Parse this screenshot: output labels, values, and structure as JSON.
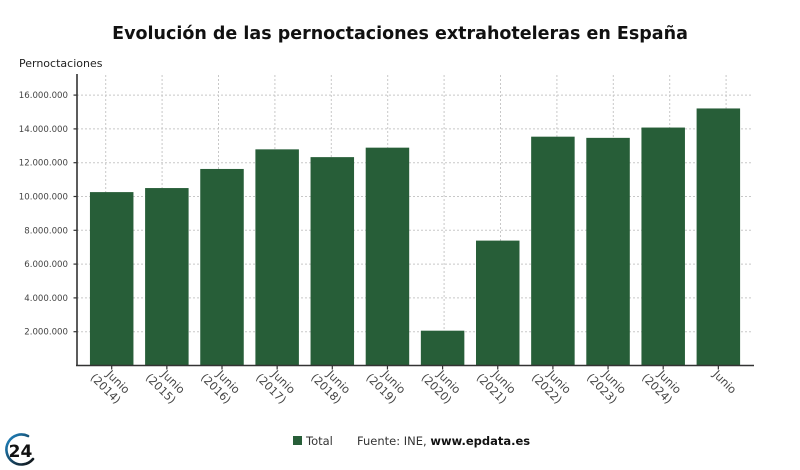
{
  "colors": {
    "bar": "#275e38",
    "logo_arc_start": "#1e88c8",
    "logo_arc_end": "#111111"
  },
  "logo": {
    "text": "24",
    "icon": "epdata-24-logo-icon"
  },
  "legend": {
    "series_label": "Total",
    "source_prefix": "Fuente: INE, ",
    "source_link": "www.epdata.es"
  },
  "chart_data": {
    "type": "bar",
    "title": "Evolución de las pernoctaciones extrahoteleras en España",
    "xlabel": "",
    "ylabel": "Pernoctaciones",
    "ylim": [
      0,
      17000000
    ],
    "yticks": [
      2000000,
      4000000,
      6000000,
      8000000,
      10000000,
      12000000,
      14000000,
      16000000
    ],
    "ytick_labels": [
      "2.000.000",
      "4.000.000",
      "6.000.000",
      "8.000.000",
      "10.000.000",
      "12.000.000",
      "14.000.000",
      "16.000.000"
    ],
    "grid": true,
    "legend_position": "bottom",
    "categories": [
      [
        "Junio",
        "(2014)"
      ],
      [
        "Junio",
        "(2015)"
      ],
      [
        "Junio",
        "(2016)"
      ],
      [
        "Junio",
        "(2017)"
      ],
      [
        "Junio",
        "(2018)"
      ],
      [
        "Junio",
        "(2019)"
      ],
      [
        "Junio",
        "(2020)"
      ],
      [
        "Junio",
        "(2021)"
      ],
      [
        "Junio",
        "(2022)"
      ],
      [
        "Junio",
        "(2023)"
      ],
      [
        "Junio",
        "(2024)"
      ],
      [
        "Junio"
      ]
    ],
    "series": [
      {
        "name": "Total",
        "values": [
          10260000,
          10500000,
          11630000,
          12790000,
          12330000,
          12890000,
          2060000,
          7390000,
          13540000,
          13470000,
          14080000,
          15210000
        ]
      }
    ]
  }
}
